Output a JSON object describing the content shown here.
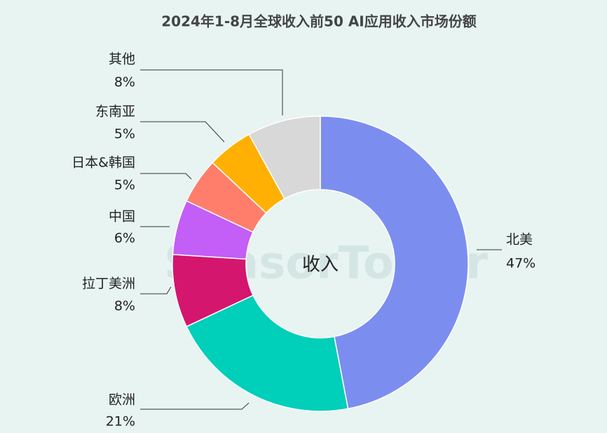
{
  "chart_data": {
    "type": "donut",
    "title": "2024年1-8月全球收入前50 AI应用收入市场份额",
    "center_label": "收入",
    "watermark": "SensorTower",
    "categories": [
      "北美",
      "欧洲",
      "拉丁美洲",
      "中国",
      "日本&韩国",
      "东南亚",
      "其他"
    ],
    "values": [
      47,
      21,
      8,
      6,
      5,
      5,
      8
    ],
    "value_labels": [
      "47%",
      "21%",
      "8%",
      "6%",
      "5%",
      "5%",
      "8%"
    ],
    "colors": [
      "#7b8ef0",
      "#00cfb9",
      "#d4166f",
      "#c35ef6",
      "#ff7e6b",
      "#ffb002",
      "#d8d8d8"
    ]
  }
}
